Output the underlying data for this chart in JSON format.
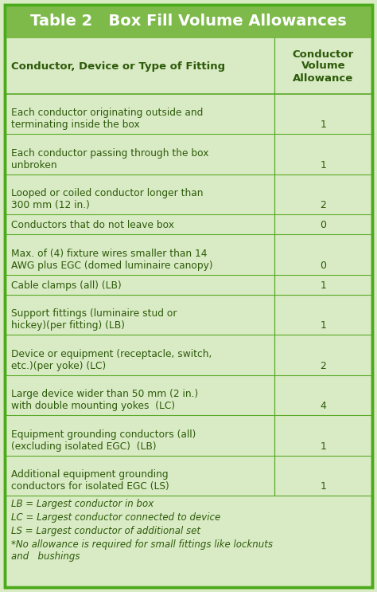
{
  "title": "Table 2   Box Fill Volume Allowances",
  "title_bg": "#7dba4a",
  "title_color": "white",
  "table_bg": "#d9ebc4",
  "header_col1": "Conductor, Device or Type of Fitting",
  "header_col2": "Conductor\nVolume\nAllowance",
  "rows": [
    [
      "Each conductor originating outside and\nterminating inside the box",
      "1"
    ],
    [
      "Each conductor passing through the box\nunbroken",
      "1"
    ],
    [
      "Looped or coiled conductor longer than\n300 mm (12 in.)",
      "2"
    ],
    [
      "Conductors that do not leave box",
      "0"
    ],
    [
      "Max. of (4) fixture wires smaller than 14\nAWG plus EGC (domed luminaire canopy)",
      "0"
    ],
    [
      "Cable clamps (all) (LB)",
      "1"
    ],
    [
      "Support fittings (luminaire stud or\nhickey)(per fitting) (LB)",
      "1"
    ],
    [
      "Device or equipment (receptacle, switch,\netc.)(per yoke) (LC)",
      "2"
    ],
    [
      "Large device wider than 50 mm (2 in.)\nwith double mounting yokes  (LC)",
      "4"
    ],
    [
      "Equipment grounding conductors (all)\n(excluding isolated EGC)  (LB)",
      "1"
    ],
    [
      "Additional equipment grounding\nconductors for isolated EGC (LS)",
      "1"
    ]
  ],
  "footnotes": [
    "LB = Largest conductor in box",
    "LC = Largest conductor connected to device",
    "LS = Largest conductor of additional set",
    "*No allowance is required for small fittings like locknuts\nand   bushings"
  ],
  "line_color": "#5aaa2a",
  "text_color": "#2d5a0a",
  "outer_border_color": "#4aaa1a",
  "figw": 4.74,
  "figh": 7.43,
  "dpi": 100
}
